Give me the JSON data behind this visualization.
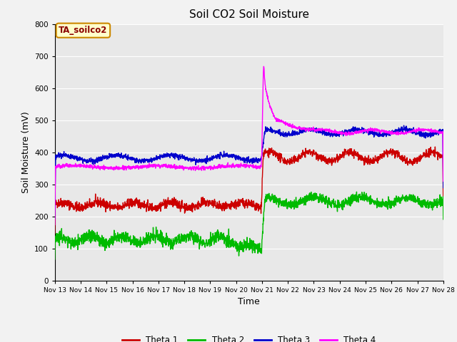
{
  "title": "Soil CO2 Soil Moisture",
  "xlabel": "Time",
  "ylabel": "Soil Moisture (mV)",
  "annotation": "TA_soilco2",
  "annotation_bg": "#ffffcc",
  "annotation_border": "#cc8800",
  "ylim": [
    0,
    800
  ],
  "fig_bg": "#f2f2f2",
  "plot_bg": "#e8e8e8",
  "legend": [
    "Theta 1",
    "Theta 2",
    "Theta 3",
    "Theta 4"
  ],
  "colors": [
    "#cc0000",
    "#00bb00",
    "#0000cc",
    "#ff00ff"
  ],
  "x_labels": [
    "Nov 13",
    "Nov 14",
    "Nov 15",
    "Nov 16",
    "Nov 17",
    "Nov 18",
    "Nov 19",
    "Nov 20",
    "Nov 21",
    "Nov 22",
    "Nov 23",
    "Nov 24",
    "Nov 25",
    "Nov 26",
    "Nov 27",
    "Nov 28"
  ],
  "num_points": 2000
}
